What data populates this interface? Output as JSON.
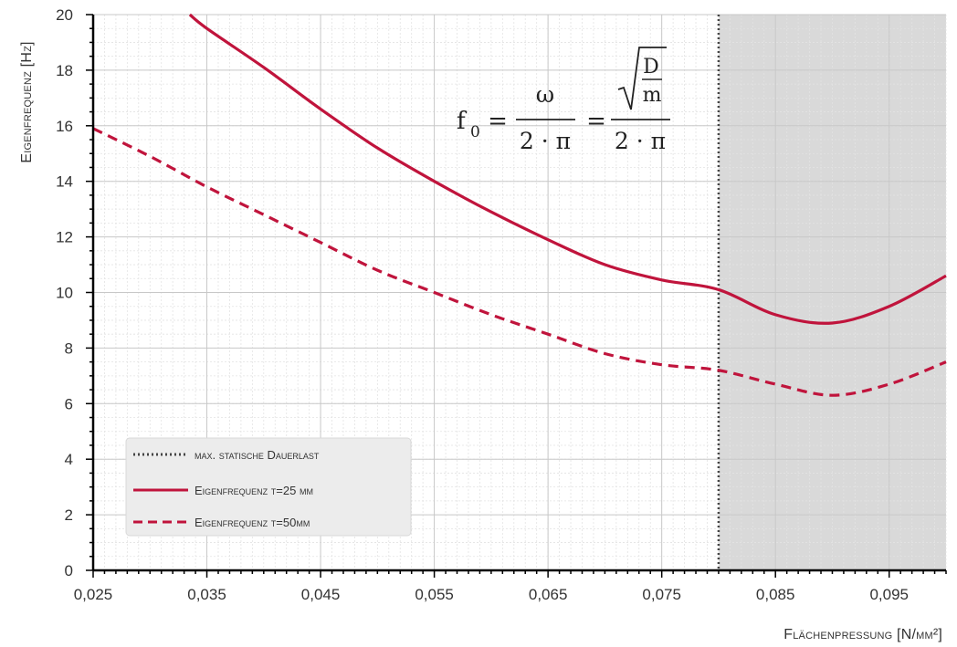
{
  "chart_data": {
    "type": "line",
    "xlabel": "Flächenpressung [N/mm²]",
    "ylabel": "Eigenfrequenz [Hz]",
    "xlim": [
      0.025,
      0.1
    ],
    "ylim": [
      0,
      20
    ],
    "x_ticks": [
      0.025,
      0.035,
      0.045,
      0.055,
      0.065,
      0.075,
      0.085,
      0.095
    ],
    "x_tick_labels": [
      "0,025",
      "0,035",
      "0,045",
      "0,055",
      "0,065",
      "0,075",
      "0,085",
      "0,095"
    ],
    "y_ticks": [
      0,
      2,
      4,
      6,
      8,
      10,
      12,
      14,
      16,
      18,
      20
    ],
    "y_tick_labels": [
      "0",
      "2",
      "4",
      "6",
      "8",
      "10",
      "12",
      "14",
      "16",
      "18",
      "20"
    ],
    "grid": true,
    "legend_position": "bottom-left",
    "shaded_region": {
      "x_from": 0.08,
      "x_to": 0.1,
      "color": "#d9d9d9"
    },
    "vline": {
      "x": 0.08,
      "style": "dotted",
      "color": "#444444"
    },
    "series": [
      {
        "name": "max. statische Dauerlast",
        "style": "dotted",
        "color": "#444444"
      },
      {
        "name": "Eigenfrequenz t=25 mm",
        "style": "solid",
        "color": "#c0143c",
        "x": [
          0.0335,
          0.035,
          0.04,
          0.045,
          0.05,
          0.055,
          0.06,
          0.065,
          0.07,
          0.075,
          0.08,
          0.085,
          0.09,
          0.095,
          0.1
        ],
        "y": [
          20.0,
          19.5,
          18.1,
          16.6,
          15.2,
          14.0,
          12.9,
          11.9,
          11.0,
          10.45,
          10.1,
          9.2,
          8.9,
          9.5,
          10.6
        ]
      },
      {
        "name": "Eigenfrequenz t=50mm",
        "style": "dashed",
        "color": "#c0143c",
        "x": [
          0.025,
          0.03,
          0.035,
          0.04,
          0.045,
          0.05,
          0.055,
          0.06,
          0.065,
          0.07,
          0.075,
          0.08,
          0.085,
          0.09,
          0.095,
          0.1
        ],
        "y": [
          15.9,
          14.9,
          13.8,
          12.8,
          11.8,
          10.8,
          10.0,
          9.2,
          8.5,
          7.8,
          7.4,
          7.2,
          6.7,
          6.3,
          6.7,
          7.5
        ]
      }
    ]
  },
  "formula": {
    "f": "f",
    "sub": "0",
    "eq": "=",
    "num1": "ω",
    "den1": "2 · π",
    "eq2": "=",
    "num2a": "D",
    "num2b": "m",
    "den2": "2 · π"
  }
}
